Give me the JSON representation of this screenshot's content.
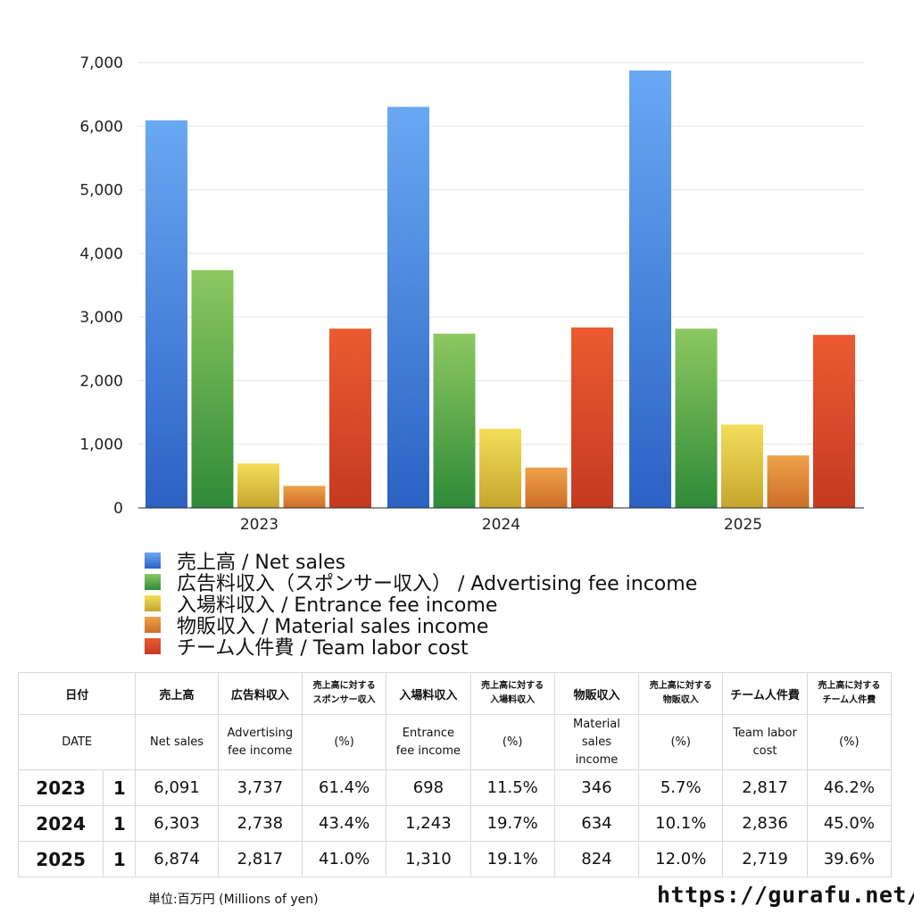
{
  "chart_data": {
    "type": "bar",
    "categories": [
      "2023",
      "2024",
      "2025"
    ],
    "ylim": [
      0,
      7000
    ],
    "yticks": [
      "0",
      "1,000",
      "2,000",
      "3,000",
      "4,000",
      "5,000",
      "6,000",
      "7,000"
    ],
    "grid": true,
    "legend_position": "bottom",
    "series": [
      {
        "name": "売上高 / Net sales",
        "values": [
          6091,
          6303,
          6874
        ],
        "color_top": "#69a8f3",
        "color_bottom": "#2c62c4"
      },
      {
        "name": "広告料収入（スポンサー収入） / Advertising fee income",
        "values": [
          3737,
          2738,
          2817
        ],
        "color_top": "#8cc860",
        "color_bottom": "#2f8a38"
      },
      {
        "name": "入場料収入 / Entrance fee income",
        "values": [
          698,
          1243,
          1310
        ],
        "color_top": "#f3de5a",
        "color_bottom": "#c6a52e"
      },
      {
        "name": "物販収入 / Material sales income",
        "values": [
          346,
          634,
          824
        ],
        "color_top": "#eea24a",
        "color_bottom": "#cc6e28"
      },
      {
        "name": "チーム人件費 / Team labor cost",
        "values": [
          2817,
          2836,
          2719
        ],
        "color_top": "#ec5a30",
        "color_bottom": "#c43a22"
      }
    ]
  },
  "table": {
    "header_jp": [
      "日付",
      "売上高",
      "広告料収入",
      "売上高に対する\nスポンサー収入",
      "入場料収入",
      "売上高に対する\n入場料収入",
      "物販収入",
      "売上高に対する\n物販収入",
      "チーム人件費",
      "売上高に対する\nチーム人件費"
    ],
    "header_en": [
      "DATE",
      "Net sales",
      "Advertising\nfee income",
      "(%)",
      "Entrance\nfee income",
      "(%)",
      "Material\nsales\nincome",
      "(%)",
      "Team labor\ncost",
      "(%)"
    ],
    "rows": [
      {
        "year": "2023",
        "count": "1",
        "cells": [
          "6,091",
          "3,737",
          "61.4%",
          "698",
          "11.5%",
          "346",
          "5.7%",
          "2,817",
          "46.2%"
        ]
      },
      {
        "year": "2024",
        "count": "1",
        "cells": [
          "6,303",
          "2,738",
          "43.4%",
          "1,243",
          "19.7%",
          "634",
          "10.1%",
          "2,836",
          "45.0%"
        ]
      },
      {
        "year": "2025",
        "count": "1",
        "cells": [
          "6,874",
          "2,817",
          "41.0%",
          "1,310",
          "19.1%",
          "824",
          "12.0%",
          "2,719",
          "39.6%"
        ]
      }
    ]
  },
  "footer": {
    "unit": "単位:百万円 (Millions of yen)",
    "site": "https://gurafu.net/"
  }
}
